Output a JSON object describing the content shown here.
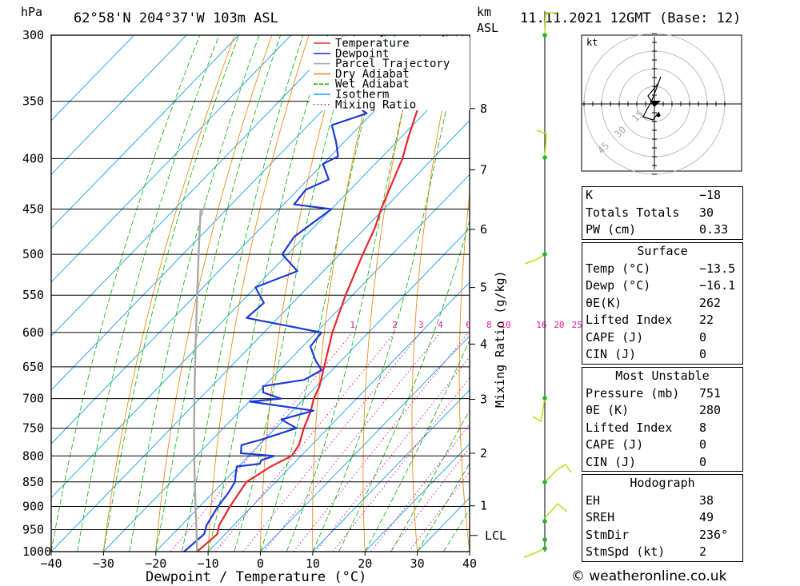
{
  "header": {
    "pressure_unit": "hPa",
    "location": "62°58'N  204°37'W  103m  ASL",
    "km_unit": "km",
    "asl_unit": "ASL",
    "datetime": "11.11.2021  12GMT  (Base: 12)"
  },
  "chart_data": {
    "type": "line",
    "xlabel": "Dewpoint / Temperature (°C)",
    "ylabel": "",
    "mixing_ratio_axis_label": "Mixing Ratio (g/kg)",
    "pressure_levels": [
      300,
      350,
      400,
      450,
      500,
      550,
      600,
      650,
      700,
      750,
      800,
      850,
      900,
      950,
      1000
    ],
    "x_ticks": [
      -40,
      -30,
      -20,
      -10,
      0,
      10,
      20,
      30,
      40
    ],
    "xlim": [
      -40,
      40
    ],
    "ylim": [
      1000,
      300
    ],
    "y_scale": "log",
    "height_ticks_km": [
      1,
      2,
      3,
      4,
      5,
      6,
      7,
      8
    ],
    "lcl_label": "LCL",
    "mixing_ratio_labels": [
      "1",
      "2",
      "3",
      "4",
      "6",
      "8",
      "10",
      "16",
      "20",
      "25"
    ],
    "legend": [
      "Temperature",
      "Dewpoint",
      "Parcel Trajectory",
      "Dry Adiabat",
      "Wet Adiabat",
      "Isotherm",
      "Mixing Ratio"
    ],
    "legend_position": "top-right",
    "colors": {
      "temperature": "#e8262b",
      "dewpoint": "#1c3ad8",
      "parcel": "#a8a8a8",
      "dry_adiabat": "#f08a18",
      "wet_adiabat": "#1eb81e",
      "isotherm": "#16a0e8",
      "mixing_ratio": "#e01c9c",
      "wind_profile": "#23b823"
    },
    "series": [
      {
        "name": "Temperature",
        "points": [
          [
            1000,
            -12.1
          ],
          [
            960,
            -11.5
          ],
          [
            940,
            -12.8
          ],
          [
            900,
            -14.2
          ],
          [
            850,
            -15.6
          ],
          [
            820,
            -13.8
          ],
          [
            800,
            -11.8
          ],
          [
            780,
            -12.4
          ],
          [
            750,
            -14.6
          ],
          [
            720,
            -16.5
          ],
          [
            700,
            -18.2
          ],
          [
            680,
            -19.4
          ],
          [
            650,
            -22.1
          ],
          [
            600,
            -26.9
          ],
          [
            550,
            -31.3
          ],
          [
            500,
            -35.6
          ],
          [
            470,
            -38.2
          ],
          [
            450,
            -40.5
          ],
          [
            420,
            -43.6
          ],
          [
            400,
            -45.8
          ],
          [
            380,
            -48.7
          ],
          [
            350,
            -53.0
          ],
          [
            330,
            -56.0
          ],
          [
            300,
            -60.8
          ]
        ]
      },
      {
        "name": "Dewpoint",
        "points": [
          [
            1000,
            -14.6
          ],
          [
            960,
            -14.0
          ],
          [
            940,
            -15.2
          ],
          [
            900,
            -16.5
          ],
          [
            870,
            -17.1
          ],
          [
            850,
            -17.8
          ],
          [
            830,
            -19.5
          ],
          [
            820,
            -20.3
          ],
          [
            815,
            -16.4
          ],
          [
            808,
            -16.8
          ],
          [
            800,
            -15.1
          ],
          [
            795,
            -22.0
          ],
          [
            780,
            -23.4
          ],
          [
            770,
            -20.6
          ],
          [
            750,
            -16.0
          ],
          [
            735,
            -20.5
          ],
          [
            720,
            -16.0
          ],
          [
            705,
            -29.8
          ],
          [
            700,
            -24.5
          ],
          [
            690,
            -29.0
          ],
          [
            680,
            -30.2
          ],
          [
            670,
            -23.5
          ],
          [
            655,
            -22.0
          ],
          [
            640,
            -25.0
          ],
          [
            620,
            -28.5
          ],
          [
            600,
            -29.0
          ],
          [
            580,
            -46.0
          ],
          [
            560,
            -45.5
          ],
          [
            540,
            -50.0
          ],
          [
            520,
            -45.0
          ],
          [
            500,
            -51.0
          ],
          [
            480,
            -52.0
          ],
          [
            450,
            -50.0
          ],
          [
            445,
            -58.0
          ],
          [
            430,
            -58.5
          ],
          [
            420,
            -56.0
          ],
          [
            405,
            -60.0
          ],
          [
            398,
            -58.5
          ],
          [
            385,
            -61.5
          ],
          [
            370,
            -65.5
          ],
          [
            360,
            -61.0
          ],
          [
            350,
            -66.5
          ],
          [
            340,
            -68.5
          ],
          [
            330,
            -68.0
          ],
          [
            315,
            -72.0
          ],
          [
            300,
            -72.5
          ]
        ]
      },
      {
        "name": "Parcel Trajectory",
        "points": [
          [
            1000,
            -12.1
          ],
          [
            950,
            -16.3
          ],
          [
            900,
            -20.8
          ],
          [
            850,
            -25.5
          ],
          [
            800,
            -30.4
          ],
          [
            750,
            -35.6
          ],
          [
            700,
            -41.0
          ],
          [
            650,
            -46.8
          ],
          [
            600,
            -53.0
          ],
          [
            550,
            -59.7
          ],
          [
            500,
            -67.0
          ],
          [
            450,
            -75.0
          ]
        ]
      }
    ]
  },
  "hodograph": {
    "unit_label": "kt",
    "ring_labels": [
      "15",
      "30",
      "45"
    ]
  },
  "indices": {
    "general": [
      {
        "label": "K",
        "value": "-18"
      },
      {
        "label": "Totals Totals",
        "value": "30"
      },
      {
        "label": "PW (cm)",
        "value": "0.33"
      }
    ],
    "surface_title": "Surface",
    "surface": [
      {
        "label": "Temp (°C)",
        "value": "-13.5"
      },
      {
        "label": "Dewp (°C)",
        "value": "-16.1"
      },
      {
        "label": "θE(K)",
        "value": "262"
      },
      {
        "label": "Lifted Index",
        "value": "22"
      },
      {
        "label": "CAPE (J)",
        "value": "0"
      },
      {
        "label": "CIN (J)",
        "value": "0"
      }
    ],
    "most_unstable_title": "Most Unstable",
    "most_unstable": [
      {
        "label": "Pressure (mb)",
        "value": "751"
      },
      {
        "label": "θE (K)",
        "value": "280"
      },
      {
        "label": "Lifted Index",
        "value": "8"
      },
      {
        "label": "CAPE (J)",
        "value": "0"
      },
      {
        "label": "CIN (J)",
        "value": "0"
      }
    ],
    "hodograph_title": "Hodograph",
    "hodograph": [
      {
        "label": "EH",
        "value": "38"
      },
      {
        "label": "SREH",
        "value": "49"
      },
      {
        "label": "StmDir",
        "value": "236°"
      },
      {
        "label": "StmSpd (kt)",
        "value": "2"
      }
    ]
  },
  "credit": "© weatheronline.co.uk"
}
